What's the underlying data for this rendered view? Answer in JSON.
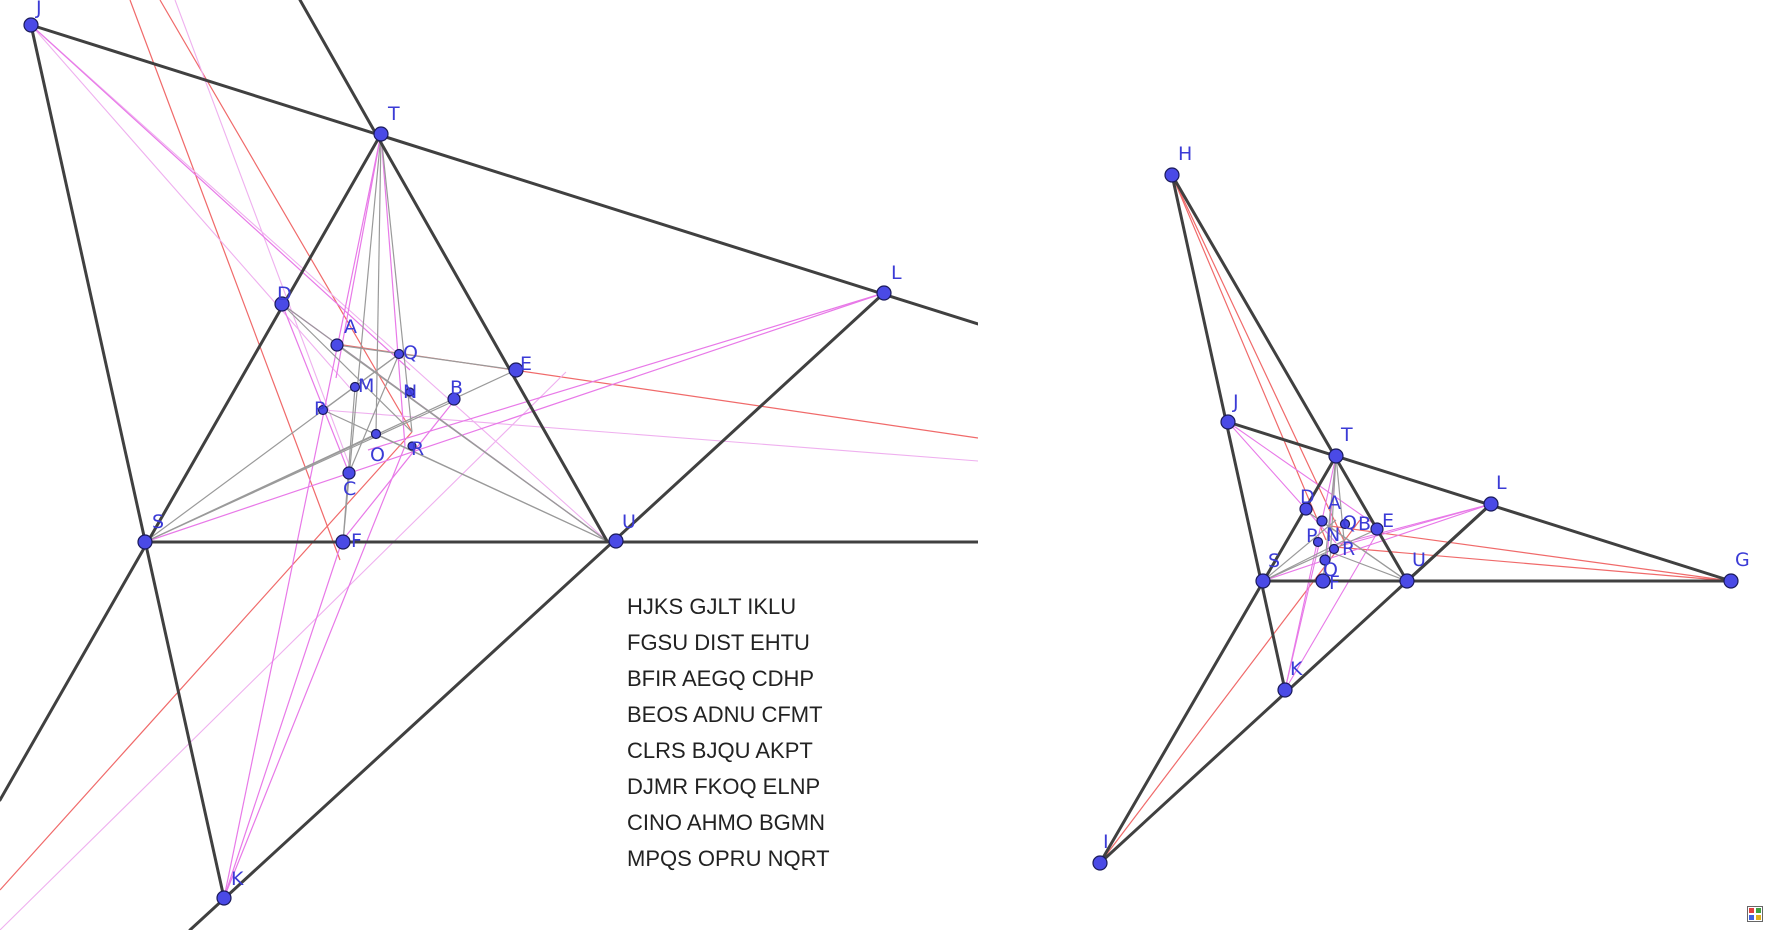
{
  "colors": {
    "thick": "#404040",
    "gray": "#9a9a9a",
    "pink": "#e879e8",
    "pink_light": "#efb0ef",
    "red": "#f06a6a",
    "point_fill": "#4a4ae6",
    "point_stroke": "#1a1a5a",
    "label": "#3b3bd6"
  },
  "quadruples": [
    "HJKS GJLT IKLU",
    "FGSU DIST EHTU",
    "BFIR AEGQ CDHP",
    "BEOS ADNU CFMT",
    "CLRS BJQU AKPT",
    "DJMR FKOQ ELNP",
    "CINO AHMO BGMN",
    "MPQS OPRU NQRT"
  ],
  "left_labels": {
    "J": "J",
    "T": "T",
    "L": "L",
    "D": "D",
    "A": "A",
    "Q": "Q",
    "E": "E",
    "M": "M",
    "N": "N",
    "B": "B",
    "P": "P",
    "O": "O",
    "R": "R",
    "C": "C",
    "S": "S",
    "F": "F",
    "U": "U",
    "K": "K"
  },
  "right_labels": {
    "H": "H",
    "J": "J",
    "T": "T",
    "L": "L",
    "D": "D",
    "A": "A",
    "Q": "Q",
    "B": "B",
    "E": "E",
    "P": "P",
    "N": "N",
    "R": "R",
    "S": "S",
    "O": "O",
    "F": "F",
    "U": "U",
    "G": "G",
    "K": "K",
    "I": "I",
    "C": "C"
  },
  "icon": "geogebra-logo-icon"
}
